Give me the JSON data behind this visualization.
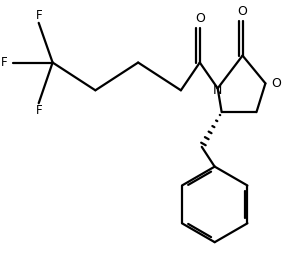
{
  "bg_color": "#ffffff",
  "line_color": "#000000",
  "line_width": 1.6,
  "fig_width": 2.86,
  "fig_height": 2.58,
  "dpi": 100,
  "xlim": [
    0,
    10
  ],
  "ylim": [
    0,
    9
  ]
}
